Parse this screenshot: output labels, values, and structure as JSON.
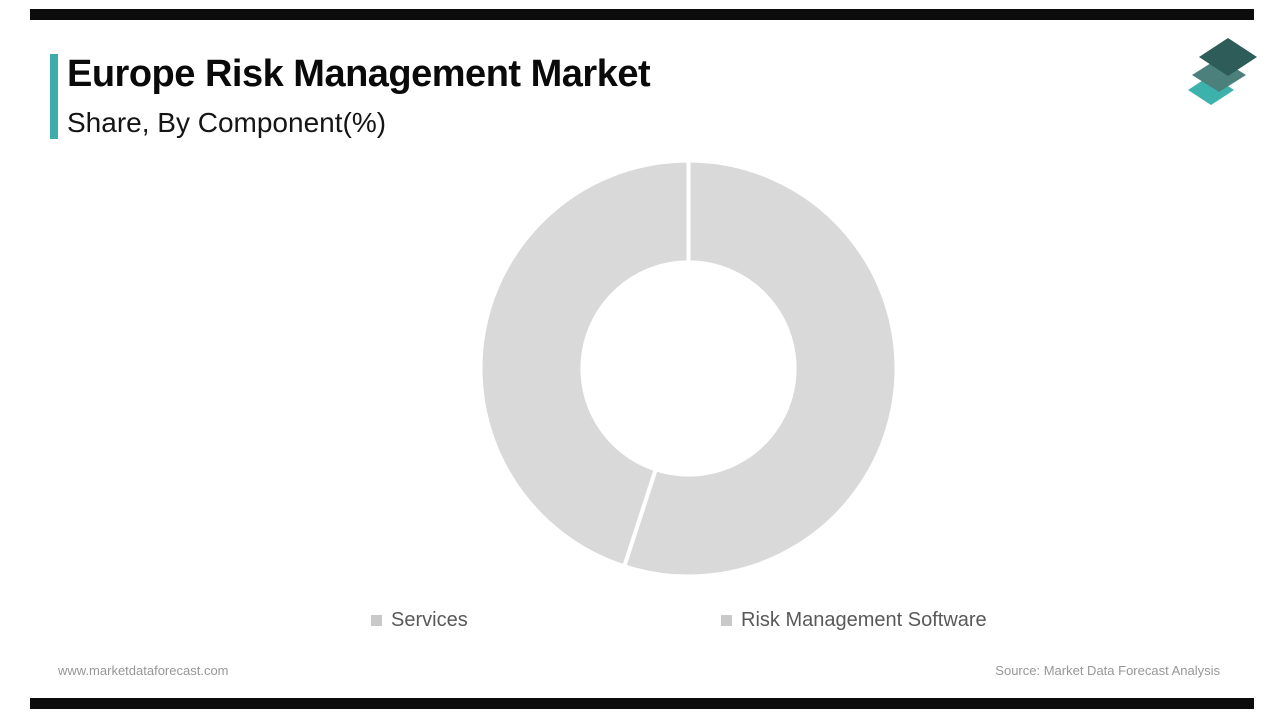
{
  "page": {
    "background": "#ffffff",
    "accent_color": "#3EACA8",
    "frame_bar_color": "#0c0c0c"
  },
  "header": {
    "title": "Europe Risk Management Market",
    "subtitle": "Share, By Component(%)",
    "logo": {
      "name": "market-data-forecast-logo",
      "layer_colors": [
        "#3DB2AD",
        "#4B807C",
        "#2D5C59"
      ]
    }
  },
  "chart_data": {
    "type": "pie",
    "donut": true,
    "title": "Europe Risk Management Market Share, By Component(%)",
    "categories": [
      "Services",
      "Risk Management Software"
    ],
    "values": [
      55,
      45
    ],
    "unit": "%",
    "slice_color": "#D9D9D9",
    "separator_color": "#ffffff",
    "start_angle_deg": 0,
    "inner_radius_ratio": 0.51,
    "legend_position": "bottom"
  },
  "legend": {
    "items": [
      {
        "label": "Services",
        "marker_color": "#C9C9C9"
      },
      {
        "label": "Risk Management Software",
        "marker_color": "#C9C9C9"
      }
    ]
  },
  "footer": {
    "website": "www.marketdataforecast.com",
    "source": "Source: Market Data Forecast Analysis"
  }
}
